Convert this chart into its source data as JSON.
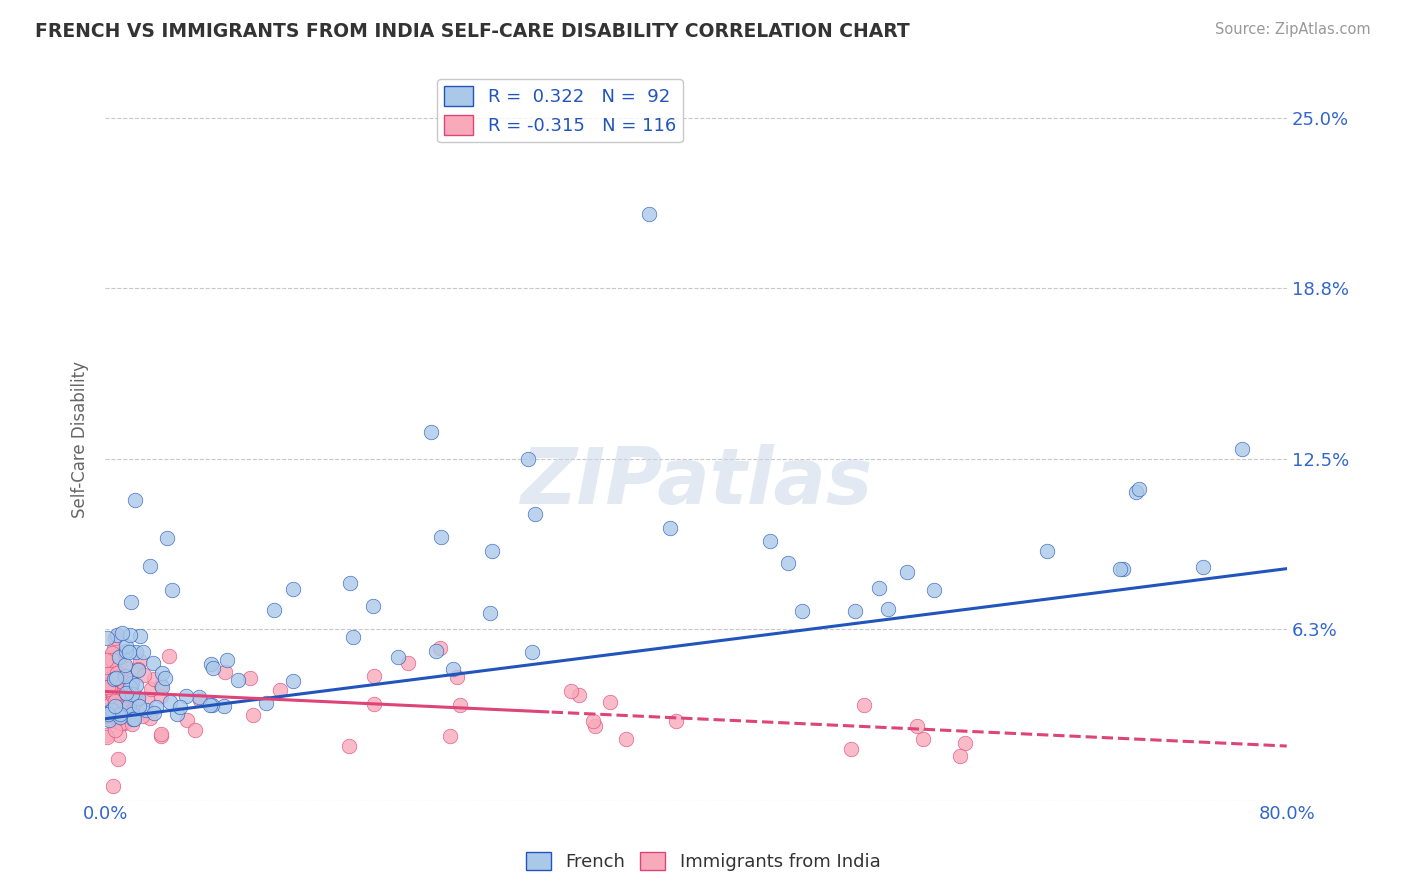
{
  "title": "FRENCH VS IMMIGRANTS FROM INDIA SELF-CARE DISABILITY CORRELATION CHART",
  "source": "Source: ZipAtlas.com",
  "ylabel": "Self-Care Disability",
  "xlim": [
    0.0,
    0.8
  ],
  "ylim": [
    0.0,
    0.265
  ],
  "yticks": [
    0.0,
    0.063,
    0.125,
    0.188,
    0.25
  ],
  "ytick_labels": [
    "",
    "6.3%",
    "12.5%",
    "18.8%",
    "25.0%"
  ],
  "background_color": "#ffffff",
  "grid_color": "#c8c8c8",
  "french_color": "#aac8e8",
  "french_line_color": "#2255bb",
  "india_color": "#f8aabb",
  "india_line_color": "#dd4477",
  "french_R": 0.322,
  "french_N": 92,
  "india_R": -0.315,
  "india_N": 116
}
